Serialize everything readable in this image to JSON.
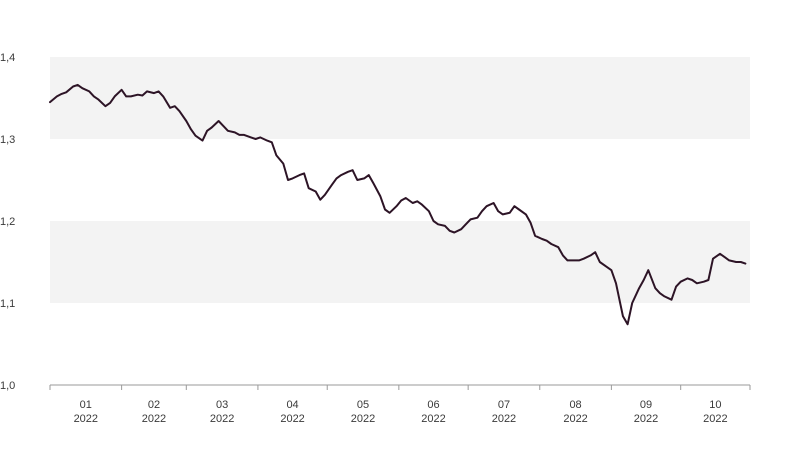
{
  "chart_data": {
    "type": "line",
    "title": "",
    "xlabel": "",
    "ylabel": "",
    "ylim": [
      1.0,
      1.4
    ],
    "xlim": [
      "2021-12-31",
      "2022-10-30"
    ],
    "y_ticks": [
      "1,0",
      "1,1",
      "1,2",
      "1,3",
      "1,4"
    ],
    "y_tick_values": [
      1.0,
      1.1,
      1.2,
      1.3,
      1.4
    ],
    "x_ticks": [
      {
        "month": "01",
        "year": "2022"
      },
      {
        "month": "02",
        "year": "2022"
      },
      {
        "month": "03",
        "year": "2022"
      },
      {
        "month": "04",
        "year": "2022"
      },
      {
        "month": "05",
        "year": "2022"
      },
      {
        "month": "06",
        "year": "2022"
      },
      {
        "month": "07",
        "year": "2022"
      },
      {
        "month": "08",
        "year": "2022"
      },
      {
        "month": "09",
        "year": "2022"
      },
      {
        "month": "10",
        "year": "2022"
      }
    ],
    "band_fill": "#f3f3f3",
    "line_color": "#2d1426",
    "grid": false,
    "series": [
      {
        "x": [
          "2021-12-31",
          "2022-01-03",
          "2022-01-05",
          "2022-01-07",
          "2022-01-10",
          "2022-01-12",
          "2022-01-14",
          "2022-01-17",
          "2022-01-19",
          "2022-01-21",
          "2022-01-24",
          "2022-01-26",
          "2022-01-28",
          "2022-01-31",
          "2022-02-02",
          "2022-02-04",
          "2022-02-07",
          "2022-02-09",
          "2022-02-11",
          "2022-02-14",
          "2022-02-16",
          "2022-02-18",
          "2022-02-21",
          "2022-02-23",
          "2022-02-25",
          "2022-02-28",
          "2022-03-02",
          "2022-03-04",
          "2022-03-07",
          "2022-03-09",
          "2022-03-11",
          "2022-03-14",
          "2022-03-16",
          "2022-03-18",
          "2022-03-21",
          "2022-03-23",
          "2022-03-25",
          "2022-03-28",
          "2022-03-30",
          "2022-04-01",
          "2022-04-04",
          "2022-04-06",
          "2022-04-08",
          "2022-04-11",
          "2022-04-13",
          "2022-04-15",
          "2022-04-18",
          "2022-04-20",
          "2022-04-22",
          "2022-04-25",
          "2022-04-27",
          "2022-04-29",
          "2022-05-02",
          "2022-05-04",
          "2022-05-06",
          "2022-05-09",
          "2022-05-11",
          "2022-05-13",
          "2022-05-16",
          "2022-05-18",
          "2022-05-20",
          "2022-05-23",
          "2022-05-25",
          "2022-05-27",
          "2022-05-30",
          "2022-06-01",
          "2022-06-03",
          "2022-06-06",
          "2022-06-08",
          "2022-06-10",
          "2022-06-13",
          "2022-06-15",
          "2022-06-17",
          "2022-06-20",
          "2022-06-22",
          "2022-06-24",
          "2022-06-27",
          "2022-06-29",
          "2022-07-01",
          "2022-07-04",
          "2022-07-06",
          "2022-07-08",
          "2022-07-11",
          "2022-07-13",
          "2022-07-15",
          "2022-07-18",
          "2022-07-20",
          "2022-07-22",
          "2022-07-25",
          "2022-07-27",
          "2022-07-29",
          "2022-08-01",
          "2022-08-03",
          "2022-08-05",
          "2022-08-08",
          "2022-08-10",
          "2022-08-12",
          "2022-08-15",
          "2022-08-17",
          "2022-08-19",
          "2022-08-22",
          "2022-08-24",
          "2022-08-26",
          "2022-08-29",
          "2022-08-31",
          "2022-09-02",
          "2022-09-05",
          "2022-09-07",
          "2022-09-09",
          "2022-09-12",
          "2022-09-14",
          "2022-09-16",
          "2022-09-19",
          "2022-09-21",
          "2022-09-23",
          "2022-09-26",
          "2022-09-28",
          "2022-09-30",
          "2022-10-03",
          "2022-10-05",
          "2022-10-07",
          "2022-10-10",
          "2022-10-12",
          "2022-10-14",
          "2022-10-17",
          "2022-10-19",
          "2022-10-21",
          "2022-10-24",
          "2022-10-26",
          "2022-10-28"
        ],
        "y": [
          1.345,
          1.352,
          1.355,
          1.357,
          1.364,
          1.366,
          1.362,
          1.358,
          1.352,
          1.348,
          1.34,
          1.344,
          1.352,
          1.36,
          1.352,
          1.352,
          1.354,
          1.353,
          1.358,
          1.356,
          1.358,
          1.352,
          1.338,
          1.34,
          1.334,
          1.322,
          1.312,
          1.304,
          1.298,
          1.31,
          1.314,
          1.322,
          1.316,
          1.31,
          1.308,
          1.305,
          1.305,
          1.302,
          1.3,
          1.302,
          1.298,
          1.296,
          1.28,
          1.27,
          1.25,
          1.252,
          1.256,
          1.258,
          1.24,
          1.236,
          1.226,
          1.232,
          1.244,
          1.252,
          1.256,
          1.26,
          1.262,
          1.25,
          1.252,
          1.256,
          1.246,
          1.23,
          1.214,
          1.21,
          1.218,
          1.225,
          1.228,
          1.222,
          1.224,
          1.22,
          1.212,
          1.2,
          1.196,
          1.194,
          1.188,
          1.186,
          1.19,
          1.196,
          1.202,
          1.204,
          1.212,
          1.218,
          1.222,
          1.212,
          1.208,
          1.21,
          1.218,
          1.214,
          1.208,
          1.198,
          1.182,
          1.178,
          1.176,
          1.172,
          1.168,
          1.158,
          1.152,
          1.152,
          1.152,
          1.154,
          1.158,
          1.162,
          1.15,
          1.144,
          1.14,
          1.124,
          1.084,
          1.074,
          1.1,
          1.118,
          1.128,
          1.14,
          1.118,
          1.112,
          1.108,
          1.104,
          1.12,
          1.126,
          1.13,
          1.128,
          1.124,
          1.126,
          1.128,
          1.154,
          1.16,
          1.156,
          1.152,
          1.15,
          1.15,
          1.148
        ]
      }
    ]
  }
}
